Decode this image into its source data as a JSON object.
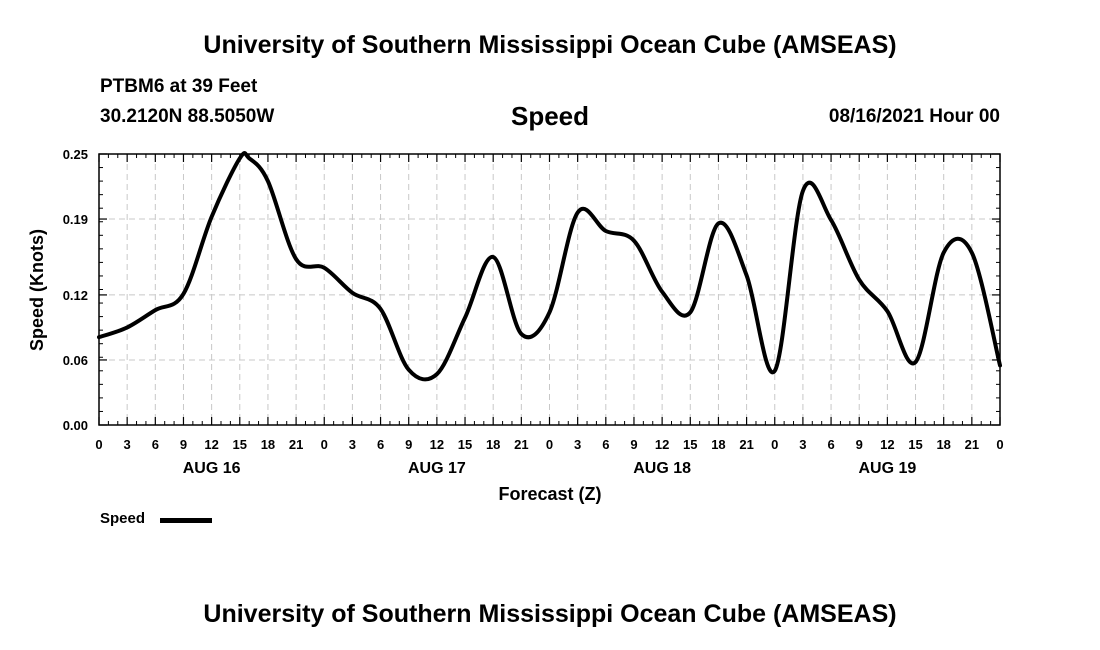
{
  "header": {
    "top_title": "University of Southern Mississippi Ocean Cube (AMSEAS)",
    "station": "PTBM6 at 39 Feet",
    "coords": "30.2120N  88.5050W",
    "date": "08/16/2021 Hour 00",
    "bottom_title": "University of Southern Mississippi Ocean Cube (AMSEAS)"
  },
  "legend": {
    "label": "Speed"
  },
  "chart_data": {
    "type": "line",
    "title": "Speed",
    "xlabel": "Forecast (Z)",
    "ylabel": "Speed (Knots)",
    "xlim": [
      0,
      96
    ],
    "ylim": [
      0,
      0.25
    ],
    "yticks": [
      0.0,
      0.06,
      0.12,
      0.19,
      0.25
    ],
    "ytick_labels": [
      "0.00",
      "0.06",
      "0.12",
      "0.19",
      "0.25"
    ],
    "xticks": [
      0,
      3,
      6,
      9,
      12,
      15,
      18,
      21,
      24,
      27,
      30,
      33,
      36,
      39,
      42,
      45,
      48,
      51,
      54,
      57,
      60,
      63,
      66,
      69,
      72,
      75,
      78,
      81,
      84,
      87,
      90,
      93,
      96
    ],
    "xtick_labels": [
      "0",
      "3",
      "6",
      "9",
      "12",
      "15",
      "18",
      "21",
      "0",
      "3",
      "6",
      "9",
      "12",
      "15",
      "18",
      "21",
      "0",
      "3",
      "6",
      "9",
      "12",
      "15",
      "18",
      "21",
      "0",
      "3",
      "6",
      "9",
      "12",
      "15",
      "18",
      "21",
      "0"
    ],
    "day_labels": [
      {
        "hour": 12,
        "label": "AUG 16"
      },
      {
        "hour": 36,
        "label": "AUG 17"
      },
      {
        "hour": 60,
        "label": "AUG 18"
      },
      {
        "hour": 84,
        "label": "AUG 19"
      }
    ],
    "grid": true,
    "series": [
      {
        "name": "Speed",
        "x": [
          0,
          3,
          6,
          9,
          12,
          15,
          16,
          18,
          21,
          24,
          27,
          30,
          33,
          36,
          39,
          42,
          45,
          48,
          51,
          54,
          57,
          60,
          63,
          66,
          69,
          72,
          75,
          78,
          81,
          84,
          87,
          90,
          93,
          96
        ],
        "values": [
          0.081,
          0.09,
          0.106,
          0.121,
          0.192,
          0.246,
          0.246,
          0.225,
          0.153,
          0.145,
          0.122,
          0.107,
          0.051,
          0.047,
          0.099,
          0.155,
          0.084,
          0.104,
          0.196,
          0.179,
          0.17,
          0.123,
          0.104,
          0.186,
          0.138,
          0.05,
          0.216,
          0.189,
          0.134,
          0.105,
          0.058,
          0.159,
          0.159,
          0.055
        ]
      }
    ]
  }
}
